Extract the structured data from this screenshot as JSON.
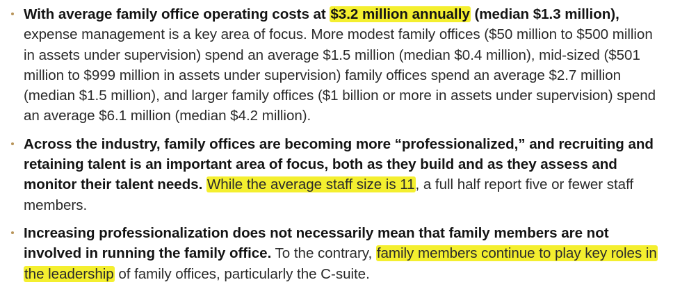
{
  "bullets": [
    {
      "bold_pre": "With average family office operating costs at ",
      "bold_highlight": "$3.2 million annually",
      "bold_post": " (median $1.3 million),",
      "normal": " expense management is a key area of focus. More modest family offices ($50 million to $500 million in assets under supervision) spend an average $1.5 million (median $0.4 million), mid-sized ($501 million to $999 million in assets under supervision) family offices spend an average $2.7 million (median $1.5 million), and larger family offices ($1 billion or more in assets under supervision) spend an average $6.1 million (median $4.2 million)."
    },
    {
      "bold": "Across the industry, family offices are becoming more “professionalized,” and recruiting and retaining talent is an important area of focus, both as they build and as they assess and monitor their talent needs.",
      "highlight": "While the average staff size is 11",
      "normal_post": ", a full half report five or fewer staff members."
    },
    {
      "bold": "Increasing professionalization does not necessarily mean that family members are not involved in running the family office.",
      "normal_pre": " To the contrary, ",
      "highlight": "family members continue to play key roles in the leadership",
      "normal_post": " of family offices, particularly the C-suite."
    }
  ],
  "colors": {
    "highlight": "#f4ef2f",
    "bullet": "#b8945a",
    "text": "#1f1f1f"
  }
}
